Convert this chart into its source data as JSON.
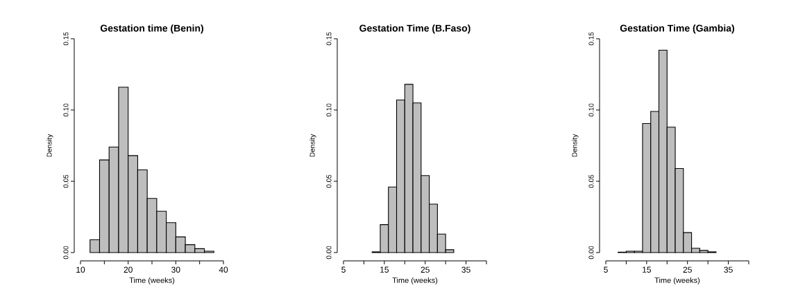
{
  "chart_data": [
    {
      "type": "histogram",
      "title": "Gestation time (Benin)",
      "xlabel": "Time (weeks)",
      "ylabel": "Density",
      "color": "#bebebe",
      "bins": [
        12,
        14,
        16,
        18,
        20,
        22,
        24,
        26,
        28,
        30,
        32,
        34,
        36,
        38
      ],
      "values": [
        0.009,
        0.065,
        0.074,
        0.116,
        0.068,
        0.058,
        0.038,
        0.029,
        0.021,
        0.011,
        0.0055,
        0.0027,
        0.001
      ],
      "xlim": [
        10,
        40
      ],
      "ylim": [
        0,
        0.15
      ],
      "xticks": [
        10,
        {
          "value": 15,
          "label": null
        },
        20,
        {
          "value": 25,
          "label": null
        },
        30,
        {
          "value": 35,
          "label": null
        },
        40
      ],
      "yticks": [
        {
          "value": 0,
          "label": "0.00"
        },
        {
          "value": 0.05,
          "label": "0.05"
        },
        {
          "value": 0.1,
          "label": "0.10"
        },
        {
          "value": 0.15,
          "label": "0.15"
        }
      ]
    },
    {
      "type": "histogram",
      "title": "Gestation Time (B.Faso)",
      "xlabel": "Time (weeks)",
      "ylabel": "Density",
      "color": "#bebebe",
      "bins": [
        12,
        14,
        16,
        18,
        20,
        22,
        24,
        26,
        28,
        30,
        32
      ],
      "values": [
        0.0005,
        0.0196,
        0.046,
        0.107,
        0.118,
        0.105,
        0.054,
        0.034,
        0.013,
        0.002
      ],
      "xlim": [
        5,
        40
      ],
      "ylim": [
        0,
        0.15
      ],
      "xticks": [
        5,
        {
          "value": 10,
          "label": null
        },
        15,
        {
          "value": 20,
          "label": null
        },
        25,
        {
          "value": 30,
          "label": null
        },
        35,
        {
          "value": 40,
          "label": null
        }
      ],
      "yticks": [
        {
          "value": 0,
          "label": "0.00"
        },
        {
          "value": 0.05,
          "label": "0.05"
        },
        {
          "value": 0.1,
          "label": "0.10"
        },
        {
          "value": 0.15,
          "label": "0.15"
        }
      ]
    },
    {
      "type": "histogram",
      "title": "Gestation Time (Gambia)",
      "xlabel": "Time (weeks)",
      "ylabel": "Density",
      "color": "#bebebe",
      "bins": [
        8,
        10,
        12,
        14,
        16,
        18,
        20,
        22,
        24,
        26,
        28,
        30,
        32
      ],
      "values": [
        0.0003,
        0.001,
        0.001,
        0.0905,
        0.099,
        0.142,
        0.088,
        0.059,
        0.014,
        0.003,
        0.0015,
        0.0005
      ],
      "xlim": [
        5,
        40
      ],
      "ylim": [
        0,
        0.15
      ],
      "xticks": [
        5,
        {
          "value": 10,
          "label": null
        },
        15,
        {
          "value": 20,
          "label": null
        },
        25,
        {
          "value": 30,
          "label": null
        },
        35,
        {
          "value": 40,
          "label": null
        }
      ],
      "yticks": [
        {
          "value": 0,
          "label": "0.00"
        },
        {
          "value": 0.05,
          "label": "0.05"
        },
        {
          "value": 0.1,
          "label": "0.10"
        },
        {
          "value": 0.15,
          "label": "0.15"
        }
      ]
    }
  ]
}
